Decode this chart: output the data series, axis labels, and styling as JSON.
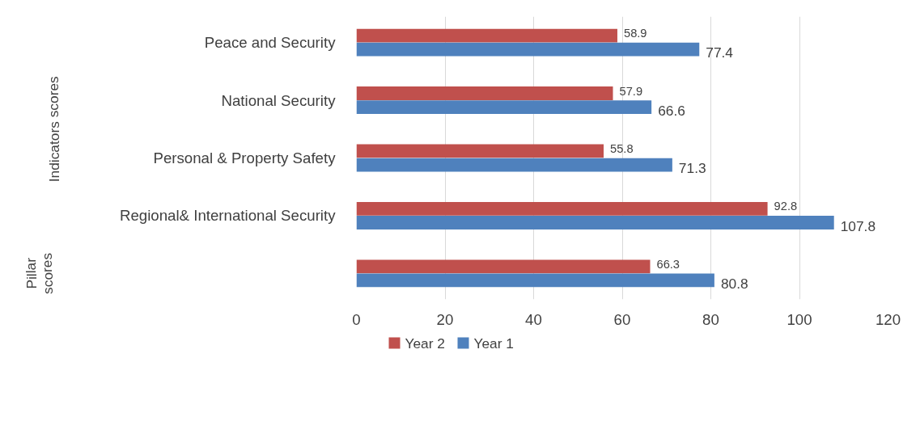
{
  "chart_data": {
    "type": "bar",
    "orientation": "horizontal",
    "categories": [
      "Peace and Security",
      "National Security",
      "Personal & Property Safety",
      "Regional& International Security",
      null
    ],
    "series": [
      {
        "name": "Year 2",
        "color": "#c0504d",
        "values": [
          58.9,
          57.9,
          55.8,
          92.8,
          66.3
        ]
      },
      {
        "name": "Year 1",
        "color": "#4f81bd",
        "values": [
          77.4,
          66.6,
          71.3,
          107.8,
          80.8
        ]
      }
    ],
    "xlim": [
      0,
      120
    ],
    "xticks": [
      0,
      20,
      40,
      60,
      80,
      100,
      120
    ],
    "grid": "x",
    "legend": "bottom",
    "data_labels": true,
    "annotations": [
      "Indicators scores",
      "Pillar scores"
    ]
  }
}
